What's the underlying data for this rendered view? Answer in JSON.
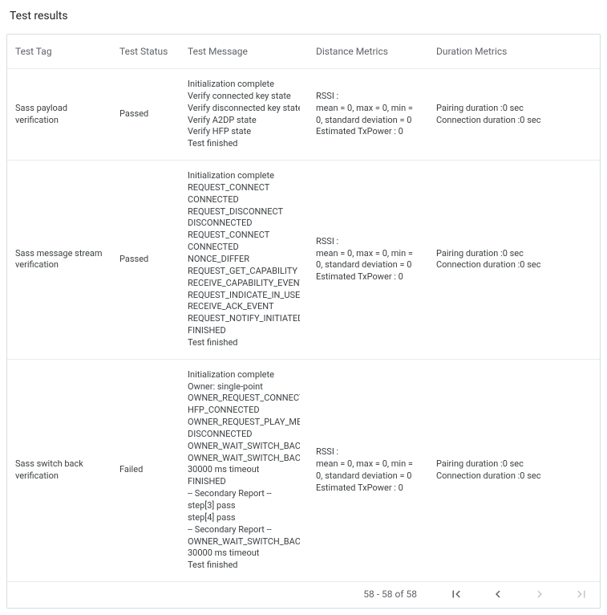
{
  "title": "Test results",
  "columns": {
    "tag": "Test Tag",
    "status": "Test Status",
    "message": "Test Message",
    "distance": "Distance Metrics",
    "duration": "Duration Metrics"
  },
  "rows": [
    {
      "tag": "Sass payload verification",
      "status": "Passed",
      "message": [
        "Initialization complete",
        "Verify connected key state",
        "Verify disconnected key state",
        "Verify A2DP state",
        "Verify HFP state",
        "Test finished"
      ],
      "distance": [
        "RSSI :",
        "mean = 0, max = 0, min = 0, standard deviation = 0",
        "Estimated TxPower : 0"
      ],
      "duration": [
        "Pairing duration :0 sec",
        "Connection duration :0 sec"
      ]
    },
    {
      "tag": "Sass message stream verification",
      "status": "Passed",
      "message": [
        "Initialization complete",
        "REQUEST_CONNECT",
        "CONNECTED",
        "REQUEST_DISCONNECT",
        "DISCONNECTED",
        "REQUEST_CONNECT",
        "CONNECTED",
        "NONCE_DIFFER",
        "REQUEST_GET_CAPABILITY",
        "RECEIVE_CAPABILITY_EVENT",
        "REQUEST_INDICATE_IN_USE_",
        "RECEIVE_ACK_EVENT",
        "REQUEST_NOTIFY_INITIATED_",
        "FINISHED",
        "Test finished"
      ],
      "distance": [
        "RSSI :",
        "mean = 0, max = 0, min = 0, standard deviation = 0",
        "Estimated TxPower : 0"
      ],
      "duration": [
        "Pairing duration :0 sec",
        "Connection duration :0 sec"
      ]
    },
    {
      "tag": "Sass switch back verification",
      "status": "Failed",
      "message": [
        "Initialization complete",
        "Owner: single-point",
        "OWNER_REQUEST_CONNECT",
        "HFP_CONNECTED",
        "OWNER_REQUEST_PLAY_MED",
        "DISCONNECTED",
        "OWNER_WAIT_SWITCH_BACK",
        "OWNER_WAIT_SWITCH_BACK",
        "30000 ms timeout",
        "FINISHED",
        "-- Secondary Report --",
        "step[3] pass",
        "step[4] pass",
        "-- Secondary Report --",
        "OWNER_WAIT_SWITCH_BACK",
        "30000 ms timeout",
        "Test finished"
      ],
      "distance": [
        "RSSI :",
        "mean = 0, max = 0, min = 0, standard deviation = 0",
        "Estimated TxPower : 0"
      ],
      "duration": [
        "Pairing duration :0 sec",
        "Connection duration :0 sec"
      ]
    }
  ],
  "pager": {
    "range": "58 - 58 of 58"
  }
}
